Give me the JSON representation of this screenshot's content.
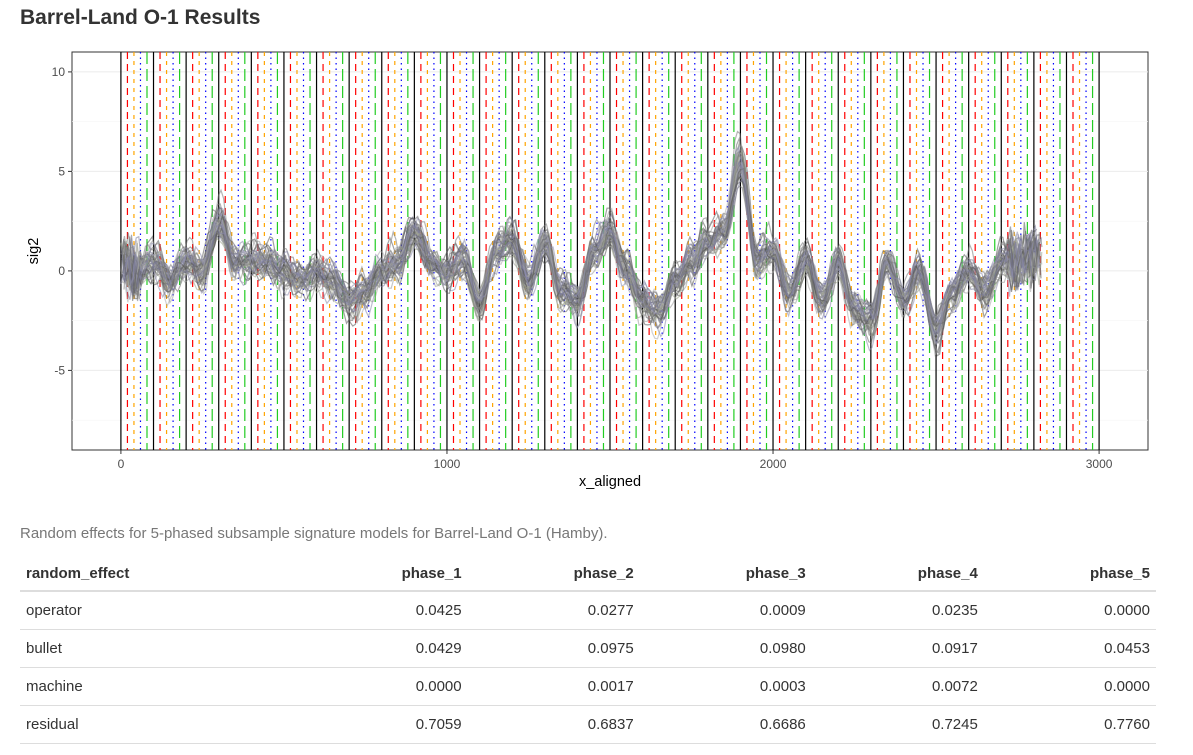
{
  "page_title": "Barrel-Land O-1 Results",
  "caption": "Random effects for 5-phased subsample signature models for Barrel-Land O-1 (Hamby).",
  "colors": {
    "phase_solid": "#000000",
    "phase_red": "#ff0000",
    "phase_orange": "#ffa500",
    "phase_blue": "#0000ff",
    "phase_green": "#22cc22",
    "signature": "#555555"
  },
  "chart_data": {
    "type": "line",
    "xlabel": "x_aligned",
    "ylabel": "sig2",
    "xlim": [
      -150,
      3150
    ],
    "ylim": [
      -9,
      11
    ],
    "xticks": [
      0,
      1000,
      2000,
      3000
    ],
    "yticks": [
      -5,
      0,
      5,
      10
    ],
    "grid": true,
    "phase_period": 100,
    "phase_range": [
      0,
      3000
    ],
    "signature_profile": {
      "x": [
        0,
        50,
        100,
        150,
        200,
        250,
        300,
        350,
        400,
        450,
        500,
        550,
        600,
        650,
        700,
        750,
        800,
        850,
        900,
        950,
        1000,
        1050,
        1100,
        1150,
        1200,
        1250,
        1300,
        1350,
        1400,
        1450,
        1500,
        1550,
        1600,
        1650,
        1700,
        1750,
        1800,
        1850,
        1900,
        1950,
        2000,
        2050,
        2100,
        2150,
        2200,
        2250,
        2300,
        2350,
        2400,
        2450,
        2500,
        2550,
        2600,
        2650,
        2700,
        2750,
        2800
      ],
      "y": [
        0.5,
        0.0,
        0.5,
        -0.5,
        0.5,
        0.0,
        2.5,
        0.5,
        0.5,
        0.5,
        0.0,
        -0.5,
        0.0,
        -0.5,
        -1.5,
        -1.0,
        0.0,
        0.5,
        2.0,
        0.5,
        0.0,
        0.5,
        -1.5,
        1.0,
        1.5,
        -0.5,
        1.5,
        -1.0,
        -1.5,
        1.0,
        2.0,
        0.0,
        -1.5,
        -2.0,
        -0.5,
        0.5,
        1.5,
        2.0,
        5.5,
        0.5,
        1.0,
        -1.0,
        0.5,
        -1.5,
        0.5,
        -2.0,
        -2.5,
        0.5,
        -1.5,
        0.0,
        -3.0,
        -1.0,
        0.0,
        -1.0,
        0.5,
        0.5,
        1.0
      ]
    }
  },
  "table": {
    "columns": [
      "random_effect",
      "phase_1",
      "phase_2",
      "phase_3",
      "phase_4",
      "phase_5"
    ],
    "rows": [
      [
        "operator",
        "0.0425",
        "0.0277",
        "0.0009",
        "0.0235",
        "0.0000"
      ],
      [
        "bullet",
        "0.0429",
        "0.0975",
        "0.0980",
        "0.0917",
        "0.0453"
      ],
      [
        "machine",
        "0.0000",
        "0.0017",
        "0.0003",
        "0.0072",
        "0.0000"
      ],
      [
        "residual",
        "0.7059",
        "0.6837",
        "0.6686",
        "0.7245",
        "0.7760"
      ]
    ]
  }
}
